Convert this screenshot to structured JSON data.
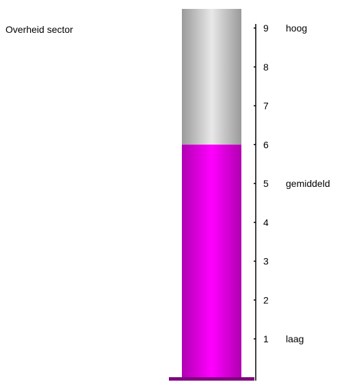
{
  "chart_data": {
    "type": "bar",
    "title": "Overheid sector",
    "value": 6,
    "ylim": [
      0,
      9.5
    ],
    "yticks": [
      1,
      2,
      3,
      4,
      5,
      6,
      7,
      8,
      9
    ],
    "ytick_labels": [
      "1",
      "2",
      "3",
      "4",
      "5",
      "6",
      "7",
      "8",
      "9"
    ],
    "level_labels": [
      {
        "at": 9,
        "text": "hoog"
      },
      {
        "at": 5,
        "text": "gemiddeld"
      },
      {
        "at": 1,
        "text": "laag"
      }
    ],
    "colors": {
      "fill": "#ff00ff",
      "fill_dark": "#b000b0",
      "empty": "#e8e8e8",
      "empty_dark": "#9a9a9a",
      "base": "#800080",
      "axis": "#000000"
    }
  }
}
